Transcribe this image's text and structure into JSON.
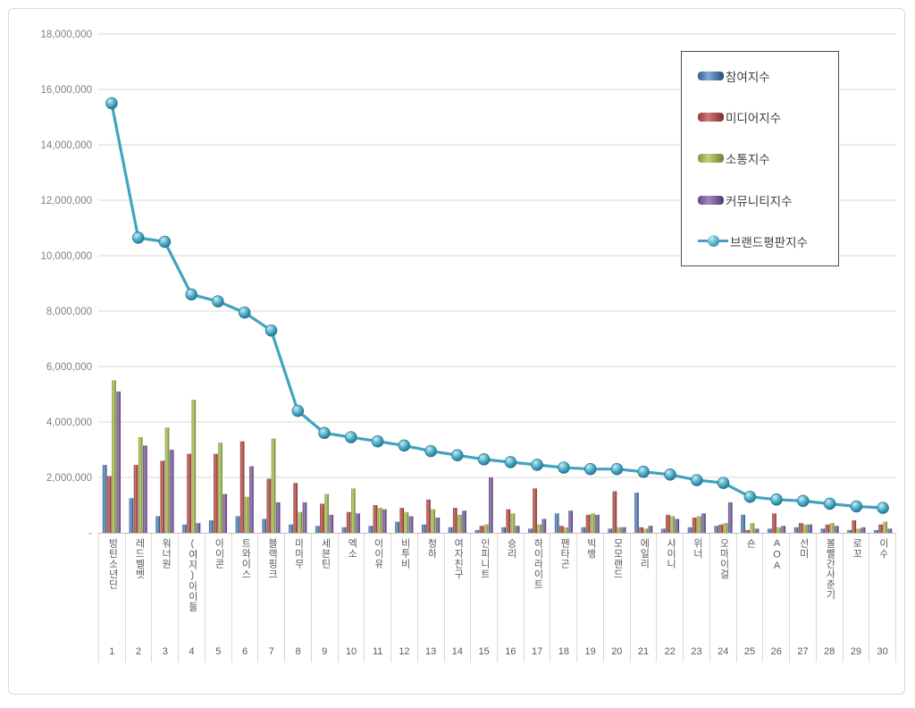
{
  "page": {
    "background_color": "#ffffff",
    "frame_border_color": "#d9d9d9"
  },
  "chart_data": {
    "type": "bar",
    "subtype": "grouped-bars-with-line-overlay",
    "title": "",
    "xlabel": "",
    "ylabel": "",
    "grid": true,
    "legend_position": "top-right",
    "y_axis": {
      "min": 0,
      "max": 18000000,
      "step": 2000000,
      "zero_label": "-",
      "tick_labels": [
        "18,000,000",
        "16,000,000",
        "14,000,000",
        "12,000,000",
        "10,000,000",
        "8,000,000",
        "6,000,000",
        "4,000,000",
        "2,000,000",
        "-"
      ]
    },
    "categories": [
      "방탄소년단",
      "레드벨벳",
      "워너원",
      "(여자)아이들",
      "아이콘",
      "트와이스",
      "블랙핑크",
      "마마무",
      "세븐틴",
      "엑소",
      "아이유",
      "비투비",
      "청하",
      "여자친구",
      "인피니트",
      "승리",
      "하이라이트",
      "펜타곤",
      "빅뱅",
      "모모랜드",
      "에일리",
      "샤이니",
      "위너",
      "오마이걸",
      "숀",
      "AOA",
      "선미",
      "볼빨간사춘기",
      "로꼬",
      "이수"
    ],
    "ranks": [
      "1",
      "2",
      "3",
      "4",
      "5",
      "6",
      "7",
      "8",
      "9",
      "10",
      "11",
      "12",
      "13",
      "14",
      "15",
      "16",
      "17",
      "18",
      "19",
      "20",
      "21",
      "22",
      "23",
      "24",
      "25",
      "26",
      "27",
      "28",
      "29",
      "30"
    ],
    "series": [
      {
        "name": "참여지수",
        "type": "bar",
        "color": "#4F81BD",
        "gloss": [
          "#355E92",
          "#7FA9D6",
          "#2B4C77"
        ],
        "values": [
          2450000,
          1250000,
          600000,
          300000,
          450000,
          600000,
          500000,
          300000,
          250000,
          200000,
          250000,
          400000,
          300000,
          200000,
          100000,
          200000,
          150000,
          700000,
          200000,
          150000,
          1450000,
          150000,
          200000,
          250000,
          650000,
          150000,
          200000,
          150000,
          100000,
          100000
        ]
      },
      {
        "name": "미디어지수",
        "type": "bar",
        "color": "#C0504D",
        "gloss": [
          "#953B38",
          "#D07975",
          "#7C2E2C"
        ],
        "values": [
          2050000,
          2450000,
          2600000,
          2850000,
          2850000,
          3300000,
          1950000,
          1800000,
          1050000,
          750000,
          1000000,
          900000,
          1200000,
          900000,
          250000,
          850000,
          1600000,
          250000,
          650000,
          1500000,
          200000,
          650000,
          550000,
          300000,
          100000,
          700000,
          350000,
          300000,
          450000,
          300000
        ]
      },
      {
        "name": "소통지수",
        "type": "bar",
        "color": "#9BBB59",
        "gloss": [
          "#7E9A42",
          "#C3D374",
          "#6A8136"
        ],
        "values": [
          5500000,
          3450000,
          3800000,
          4800000,
          3250000,
          1300000,
          3400000,
          750000,
          1400000,
          1600000,
          900000,
          750000,
          850000,
          650000,
          300000,
          700000,
          300000,
          200000,
          700000,
          200000,
          150000,
          600000,
          600000,
          350000,
          350000,
          200000,
          300000,
          350000,
          150000,
          400000
        ]
      },
      {
        "name": "커뮤니티지수",
        "type": "bar",
        "color": "#8064A2",
        "gloss": [
          "#61497F",
          "#A187C1",
          "#4F3B68"
        ],
        "values": [
          5100000,
          3150000,
          3000000,
          350000,
          1400000,
          2400000,
          1100000,
          1100000,
          650000,
          700000,
          850000,
          600000,
          550000,
          800000,
          2000000,
          250000,
          500000,
          800000,
          650000,
          200000,
          250000,
          500000,
          700000,
          1100000,
          150000,
          250000,
          300000,
          250000,
          200000,
          150000
        ]
      },
      {
        "name": "브랜드평판지수",
        "type": "line",
        "color": "#41A3C2",
        "gloss": [
          "#C8ECF5",
          "#4BACC6",
          "#23718D"
        ],
        "values": [
          15500000,
          10650000,
          10500000,
          8600000,
          8350000,
          7950000,
          7300000,
          4400000,
          3600000,
          3450000,
          3300000,
          3150000,
          2950000,
          2800000,
          2650000,
          2550000,
          2450000,
          2350000,
          2300000,
          2300000,
          2200000,
          2100000,
          1900000,
          1800000,
          1300000,
          1200000,
          1150000,
          1050000,
          950000,
          900000
        ]
      }
    ],
    "style": {
      "gridline_color": "#d9d9d9",
      "axis_line_color": "#c0c0c0",
      "tick_label_color": "#7f7f7f",
      "category_label_color": "#595959",
      "legend_border_color": "#4d4d4d"
    }
  }
}
